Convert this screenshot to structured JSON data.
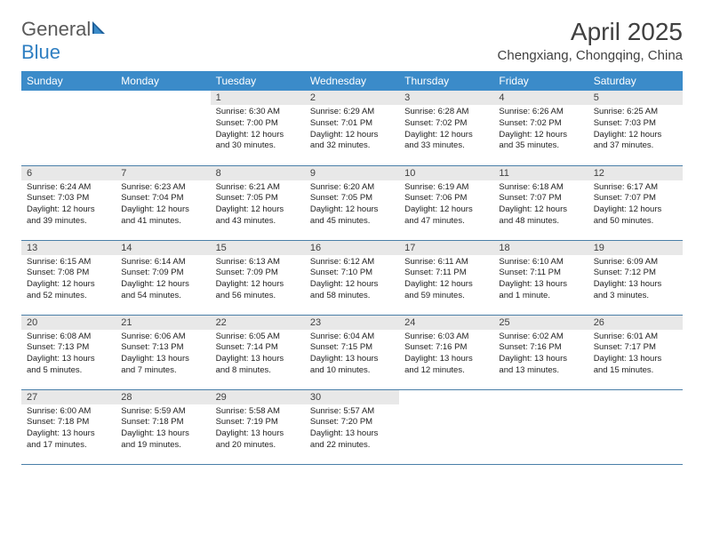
{
  "brand": {
    "part1": "General",
    "part2": "Blue"
  },
  "title": "April 2025",
  "location": "Chengxiang, Chongqing, China",
  "colors": {
    "header_bg": "#3b8bc9",
    "header_text": "#ffffff",
    "daynum_bg": "#e8e8e8",
    "border": "#4a7fa8",
    "title_color": "#404040",
    "logo_gray": "#5a5a5a",
    "logo_blue": "#2f7fc2"
  },
  "day_names": [
    "Sunday",
    "Monday",
    "Tuesday",
    "Wednesday",
    "Thursday",
    "Friday",
    "Saturday"
  ],
  "weeks": [
    [
      null,
      null,
      {
        "n": "1",
        "sunrise": "6:30 AM",
        "sunset": "7:00 PM",
        "daylight": "12 hours and 30 minutes."
      },
      {
        "n": "2",
        "sunrise": "6:29 AM",
        "sunset": "7:01 PM",
        "daylight": "12 hours and 32 minutes."
      },
      {
        "n": "3",
        "sunrise": "6:28 AM",
        "sunset": "7:02 PM",
        "daylight": "12 hours and 33 minutes."
      },
      {
        "n": "4",
        "sunrise": "6:26 AM",
        "sunset": "7:02 PM",
        "daylight": "12 hours and 35 minutes."
      },
      {
        "n": "5",
        "sunrise": "6:25 AM",
        "sunset": "7:03 PM",
        "daylight": "12 hours and 37 minutes."
      }
    ],
    [
      {
        "n": "6",
        "sunrise": "6:24 AM",
        "sunset": "7:03 PM",
        "daylight": "12 hours and 39 minutes."
      },
      {
        "n": "7",
        "sunrise": "6:23 AM",
        "sunset": "7:04 PM",
        "daylight": "12 hours and 41 minutes."
      },
      {
        "n": "8",
        "sunrise": "6:21 AM",
        "sunset": "7:05 PM",
        "daylight": "12 hours and 43 minutes."
      },
      {
        "n": "9",
        "sunrise": "6:20 AM",
        "sunset": "7:05 PM",
        "daylight": "12 hours and 45 minutes."
      },
      {
        "n": "10",
        "sunrise": "6:19 AM",
        "sunset": "7:06 PM",
        "daylight": "12 hours and 47 minutes."
      },
      {
        "n": "11",
        "sunrise": "6:18 AM",
        "sunset": "7:07 PM",
        "daylight": "12 hours and 48 minutes."
      },
      {
        "n": "12",
        "sunrise": "6:17 AM",
        "sunset": "7:07 PM",
        "daylight": "12 hours and 50 minutes."
      }
    ],
    [
      {
        "n": "13",
        "sunrise": "6:15 AM",
        "sunset": "7:08 PM",
        "daylight": "12 hours and 52 minutes."
      },
      {
        "n": "14",
        "sunrise": "6:14 AM",
        "sunset": "7:09 PM",
        "daylight": "12 hours and 54 minutes."
      },
      {
        "n": "15",
        "sunrise": "6:13 AM",
        "sunset": "7:09 PM",
        "daylight": "12 hours and 56 minutes."
      },
      {
        "n": "16",
        "sunrise": "6:12 AM",
        "sunset": "7:10 PM",
        "daylight": "12 hours and 58 minutes."
      },
      {
        "n": "17",
        "sunrise": "6:11 AM",
        "sunset": "7:11 PM",
        "daylight": "12 hours and 59 minutes."
      },
      {
        "n": "18",
        "sunrise": "6:10 AM",
        "sunset": "7:11 PM",
        "daylight": "13 hours and 1 minute."
      },
      {
        "n": "19",
        "sunrise": "6:09 AM",
        "sunset": "7:12 PM",
        "daylight": "13 hours and 3 minutes."
      }
    ],
    [
      {
        "n": "20",
        "sunrise": "6:08 AM",
        "sunset": "7:13 PM",
        "daylight": "13 hours and 5 minutes."
      },
      {
        "n": "21",
        "sunrise": "6:06 AM",
        "sunset": "7:13 PM",
        "daylight": "13 hours and 7 minutes."
      },
      {
        "n": "22",
        "sunrise": "6:05 AM",
        "sunset": "7:14 PM",
        "daylight": "13 hours and 8 minutes."
      },
      {
        "n": "23",
        "sunrise": "6:04 AM",
        "sunset": "7:15 PM",
        "daylight": "13 hours and 10 minutes."
      },
      {
        "n": "24",
        "sunrise": "6:03 AM",
        "sunset": "7:16 PM",
        "daylight": "13 hours and 12 minutes."
      },
      {
        "n": "25",
        "sunrise": "6:02 AM",
        "sunset": "7:16 PM",
        "daylight": "13 hours and 13 minutes."
      },
      {
        "n": "26",
        "sunrise": "6:01 AM",
        "sunset": "7:17 PM",
        "daylight": "13 hours and 15 minutes."
      }
    ],
    [
      {
        "n": "27",
        "sunrise": "6:00 AM",
        "sunset": "7:18 PM",
        "daylight": "13 hours and 17 minutes."
      },
      {
        "n": "28",
        "sunrise": "5:59 AM",
        "sunset": "7:18 PM",
        "daylight": "13 hours and 19 minutes."
      },
      {
        "n": "29",
        "sunrise": "5:58 AM",
        "sunset": "7:19 PM",
        "daylight": "13 hours and 20 minutes."
      },
      {
        "n": "30",
        "sunrise": "5:57 AM",
        "sunset": "7:20 PM",
        "daylight": "13 hours and 22 minutes."
      },
      null,
      null,
      null
    ]
  ],
  "labels": {
    "sunrise": "Sunrise: ",
    "sunset": "Sunset: ",
    "daylight": "Daylight: "
  }
}
